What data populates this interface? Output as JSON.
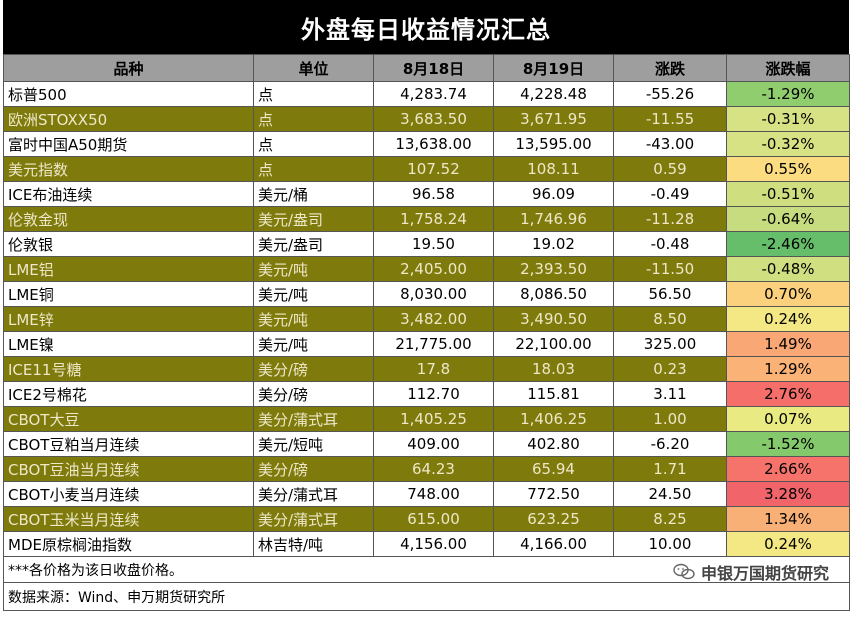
{
  "title": "外盘每日收益情况汇总",
  "headers": [
    "品种",
    "单位",
    "8月18日",
    "8月19日",
    "涨跌",
    "涨跌幅"
  ],
  "colors": {
    "header_bg": "#9e9e9e",
    "olive_row": "#7e7a0c",
    "title_bg": "#000000"
  },
  "rows": [
    {
      "name": "标普500",
      "unit": "点",
      "d1": "4,283.74",
      "d2": "4,228.48",
      "chg": "-55.26",
      "pct": "-1.29%",
      "pct_color": "#8fcd6f",
      "olive": false
    },
    {
      "name": "欧洲STOXX50",
      "unit": "点",
      "d1": "3,683.50",
      "d2": "3,671.95",
      "chg": "-11.55",
      "pct": "-0.31%",
      "pct_color": "#d6e283",
      "olive": true
    },
    {
      "name": "富时中国A50期货",
      "unit": "点",
      "d1": "13,638.00",
      "d2": "13,595.00",
      "chg": "-43.00",
      "pct": "-0.32%",
      "pct_color": "#d6e283",
      "olive": false
    },
    {
      "name": "美元指数",
      "unit": "点",
      "d1": "107.52",
      "d2": "108.11",
      "chg": "0.59",
      "pct": "0.55%",
      "pct_color": "#fbdc81",
      "olive": true
    },
    {
      "name": "ICE布油连续",
      "unit": "美元/桶",
      "d1": "96.58",
      "d2": "96.09",
      "chg": "-0.49",
      "pct": "-0.51%",
      "pct_color": "#cfdf80",
      "olive": false
    },
    {
      "name": "伦敦金现",
      "unit": "美元/盎司",
      "d1": "1,758.24",
      "d2": "1,746.96",
      "chg": "-11.28",
      "pct": "-0.64%",
      "pct_color": "#c7dc7e",
      "olive": true
    },
    {
      "name": "伦敦银",
      "unit": "美元/盎司",
      "d1": "19.50",
      "d2": "19.02",
      "chg": "-0.48",
      "pct": "-2.46%",
      "pct_color": "#66bd6a",
      "olive": false
    },
    {
      "name": "LME铝",
      "unit": "美元/吨",
      "d1": "2,405.00",
      "d2": "2,393.50",
      "chg": "-11.50",
      "pct": "-0.48%",
      "pct_color": "#d0df80",
      "olive": true
    },
    {
      "name": "LME铜",
      "unit": "美元/吨",
      "d1": "8,030.00",
      "d2": "8,086.50",
      "chg": "56.50",
      "pct": "0.70%",
      "pct_color": "#fbd17e",
      "olive": false
    },
    {
      "name": "LME锌",
      "unit": "美元/吨",
      "d1": "3,482.00",
      "d2": "3,490.50",
      "chg": "8.50",
      "pct": "0.24%",
      "pct_color": "#f4e884",
      "olive": true
    },
    {
      "name": "LME镍",
      "unit": "美元/吨",
      "d1": "21,775.00",
      "d2": "22,100.00",
      "chg": "325.00",
      "pct": "1.49%",
      "pct_color": "#f9a774",
      "olive": false
    },
    {
      "name": "ICE11号糖",
      "unit": "美分/磅",
      "d1": "17.8",
      "d2": "18.03",
      "chg": "0.23",
      "pct": "1.29%",
      "pct_color": "#fab277",
      "olive": true
    },
    {
      "name": "ICE2号棉花",
      "unit": "美分/磅",
      "d1": "112.70",
      "d2": "115.81",
      "chg": "3.11",
      "pct": "2.76%",
      "pct_color": "#f56e6a",
      "olive": false
    },
    {
      "name": "CBOT大豆",
      "unit": "美分/蒲式耳",
      "d1": "1,405.25",
      "d2": "1,406.25",
      "chg": "1.00",
      "pct": "0.07%",
      "pct_color": "#eaea83",
      "olive": true
    },
    {
      "name": "CBOT豆粕当月连续",
      "unit": "美元/短吨",
      "d1": "409.00",
      "d2": "402.80",
      "chg": "-6.20",
      "pct": "-1.52%",
      "pct_color": "#85c96d",
      "olive": false
    },
    {
      "name": "CBOT豆油当月连续",
      "unit": "美分/磅",
      "d1": "64.23",
      "d2": "65.94",
      "chg": "1.71",
      "pct": "2.66%",
      "pct_color": "#f5736b",
      "olive": true
    },
    {
      "name": "CBOT小麦当月连续",
      "unit": "美分/蒲式耳",
      "d1": "748.00",
      "d2": "772.50",
      "chg": "24.50",
      "pct": "3.28%",
      "pct_color": "#f0646a",
      "olive": false
    },
    {
      "name": "CBOT玉米当月连续",
      "unit": "美分/蒲式耳",
      "d1": "615.00",
      "d2": "623.25",
      "chg": "8.25",
      "pct": "1.34%",
      "pct_color": "#f9b076",
      "olive": true
    },
    {
      "name": "MDE原棕榈油指数",
      "unit": "林吉特/吨",
      "d1": "4,156.00",
      "d2": "4,166.00",
      "chg": "10.00",
      "pct": "0.24%",
      "pct_color": "#f4e884",
      "olive": false
    }
  ],
  "note": "***各价格为该日收盘价格。",
  "watermark": "申银万国期货研究",
  "watermark_icon": "wechat-icon",
  "source": "数据来源：Wind、申万期货研究所"
}
